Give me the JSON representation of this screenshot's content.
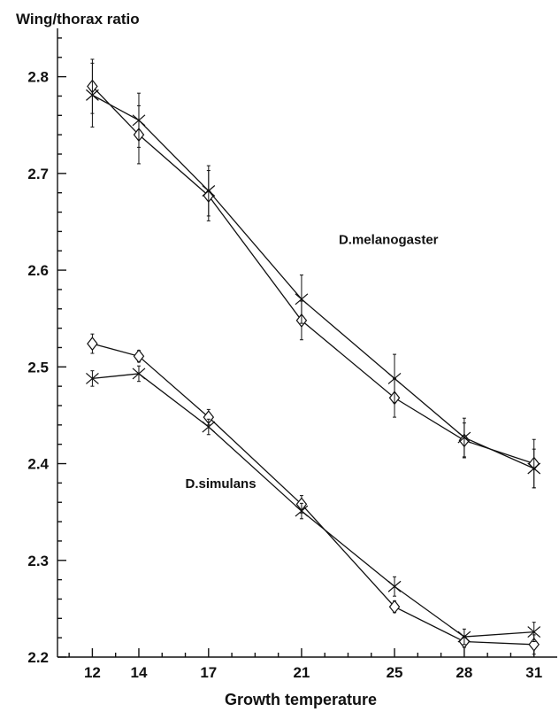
{
  "chart_data": {
    "type": "line",
    "title": "Wing/thorax ratio",
    "xlabel": "Growth temperature",
    "ylabel": "",
    "x": [
      12,
      14,
      17,
      21,
      25,
      28,
      31
    ],
    "xlim": [
      10.5,
      32
    ],
    "ylim": [
      2.2,
      2.85
    ],
    "yticks": [
      2.2,
      2.3,
      2.4,
      2.5,
      2.6,
      2.7,
      2.8
    ],
    "ytick_labels": [
      "2.2",
      "2.3",
      "2.4",
      "2.5",
      "2.6",
      "2.7",
      "2.8"
    ],
    "xtick_labels": [
      "12",
      "14",
      "17",
      "21",
      "25",
      "28",
      "31"
    ],
    "grid": false,
    "series": [
      {
        "group": "D.melanogaster",
        "marker": "diamond",
        "values": [
          2.79,
          2.74,
          2.677,
          2.548,
          2.468,
          2.424,
          2.4
        ],
        "errors": [
          0.028,
          0.03,
          0.026,
          0.02,
          0.02,
          0.018,
          0.025
        ]
      },
      {
        "group": "D.melanogaster",
        "marker": "cross",
        "values": [
          2.781,
          2.755,
          2.682,
          2.57,
          2.488,
          2.427,
          2.395
        ],
        "errors": [
          0.033,
          0.028,
          0.026,
          0.025,
          0.025,
          0.02,
          0.02
        ]
      },
      {
        "group": "D.simulans",
        "marker": "diamond",
        "values": [
          2.524,
          2.511,
          2.448,
          2.358,
          2.252,
          2.216,
          2.213
        ],
        "errors": [
          0.01,
          0.006,
          0.008,
          0.009,
          0.006,
          0.006,
          0.01
        ]
      },
      {
        "group": "D.simulans",
        "marker": "cross",
        "values": [
          2.488,
          2.493,
          2.438,
          2.351,
          2.273,
          2.221,
          2.226
        ],
        "errors": [
          0.008,
          0.008,
          0.008,
          0.008,
          0.01,
          0.008,
          0.01
        ]
      }
    ],
    "annotations": [
      {
        "text": "D.melanogaster",
        "x": 22.6,
        "y": 2.627
      },
      {
        "text": "D.simulans",
        "x": 16.0,
        "y": 2.375
      }
    ]
  }
}
